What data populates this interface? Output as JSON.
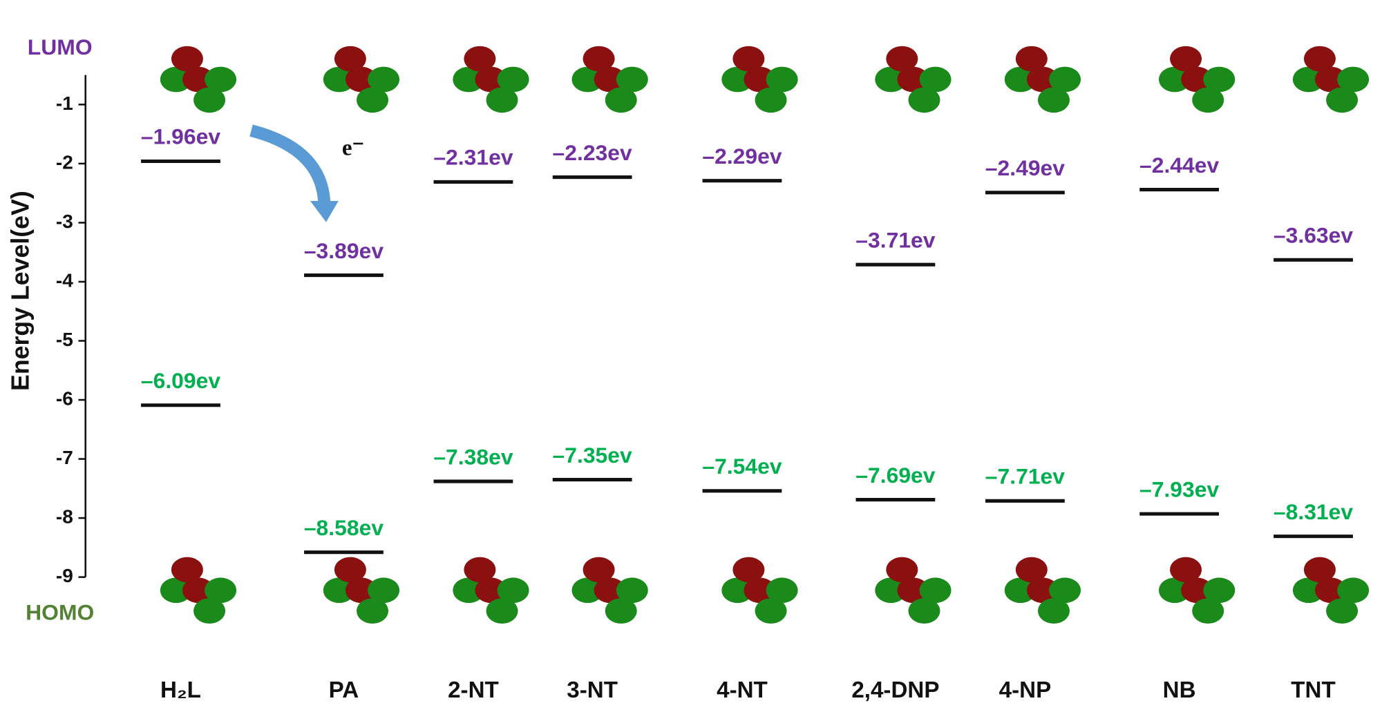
{
  "chart_data": {
    "type": "energy-level",
    "y_label": "Energy Level(eV)",
    "annotation": "e⁻",
    "categories": [
      "H₂L",
      "PA",
      "2-NT",
      "3-NT",
      "4-NT",
      "2,4-DNP",
      "4-NP",
      "NB",
      "TNT"
    ],
    "series": [
      {
        "name": "LUMO",
        "color": "#7030a0",
        "values": [
          -1.96,
          -3.89,
          -2.31,
          -2.23,
          -2.29,
          -3.71,
          -2.49,
          -2.44,
          -3.63
        ],
        "value_labels": [
          "–1.96ev",
          "–3.89ev",
          "–2.31ev",
          "–2.23ev",
          "–2.29ev",
          "–3.71ev",
          "–2.49ev",
          "–2.44ev",
          "–3.63ev"
        ]
      },
      {
        "name": "HOMO",
        "color": "#00b050",
        "values": [
          -6.09,
          -8.58,
          -7.38,
          -7.35,
          -7.54,
          -7.69,
          -7.71,
          -7.93,
          -8.31
        ],
        "value_labels": [
          "–6.09ev",
          "–8.58ev",
          "–7.38ev",
          "–7.35ev",
          "–7.54ev",
          "–7.69ev",
          "–7.71ev",
          "–7.93ev",
          "–8.31ev"
        ]
      }
    ],
    "ylim": [
      -9,
      -0.5
    ],
    "yticks": [
      -1,
      -2,
      -3,
      -4,
      -5,
      -6,
      -7,
      -8,
      -9
    ]
  }
}
